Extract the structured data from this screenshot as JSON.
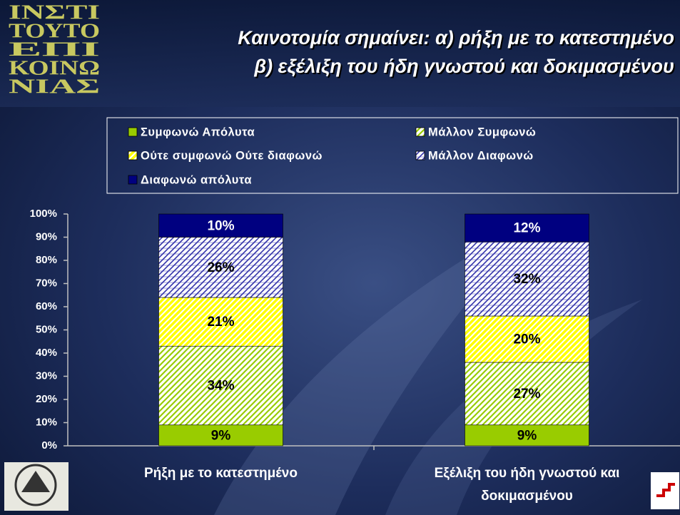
{
  "logo_text": [
    "ΙΝΣΤΙ",
    "ΤΟΥΤΟ",
    "ΕΠΙ",
    "ΚΟΙΝΩ",
    "ΝΙΑΣ"
  ],
  "chart_data": {
    "type": "stacked_bar",
    "title": [
      "Καινοτομία σημαίνει: α) ρήξη με το κατεστημένο",
      "β) εξέλιξη του ήδη γνωστού και δοκιμασμένου"
    ],
    "categories": [
      "Ρήξη με το κατεστημένο",
      "Εξέλιξη του ήδη γνωστού και δοκιμασμένου"
    ],
    "series": [
      {
        "name": "Συμφωνώ Απόλυτα",
        "color": "#99cc00",
        "pattern": "solid",
        "label_color": "#000000",
        "values": [
          9,
          9
        ],
        "value_labels": [
          "9%",
          "9%"
        ]
      },
      {
        "name": "Μάλλον Συμφωνώ",
        "color": "#99cc00",
        "pattern": "hatch",
        "label_color": "#000000",
        "values": [
          34,
          27
        ],
        "value_labels": [
          "34%",
          "27%"
        ]
      },
      {
        "name": "Ούτε συμφωνώ Ούτε διαφωνώ",
        "color": "#ffff00",
        "pattern": "stripe",
        "label_color": "#000000",
        "values": [
          21,
          20
        ],
        "value_labels": [
          "21%",
          "20%"
        ]
      },
      {
        "name": "Μάλλον Διαφωνώ",
        "color": "#3333aa",
        "pattern": "cross",
        "label_color": "#000000",
        "values": [
          26,
          32
        ],
        "value_labels": [
          "26%",
          "32%"
        ]
      },
      {
        "name": "Διαφωνώ απόλυτα",
        "color": "#000080",
        "pattern": "solid",
        "label_color": "#ffffff",
        "values": [
          10,
          12
        ],
        "value_labels": [
          "10%",
          "12%"
        ]
      }
    ],
    "ylim": [
      0,
      100
    ],
    "yticks": [
      {
        "value": 0,
        "label": "0%"
      },
      {
        "value": 10,
        "label": "10%"
      },
      {
        "value": 20,
        "label": "20%"
      },
      {
        "value": 30,
        "label": "30%"
      },
      {
        "value": 40,
        "label": "40%"
      },
      {
        "value": 50,
        "label": "50%"
      },
      {
        "value": 60,
        "label": "60%"
      },
      {
        "value": 70,
        "label": "70%"
      },
      {
        "value": 80,
        "label": "80%"
      },
      {
        "value": 90,
        "label": "90%"
      },
      {
        "value": 100,
        "label": "100%"
      }
    ],
    "legend": "top"
  }
}
